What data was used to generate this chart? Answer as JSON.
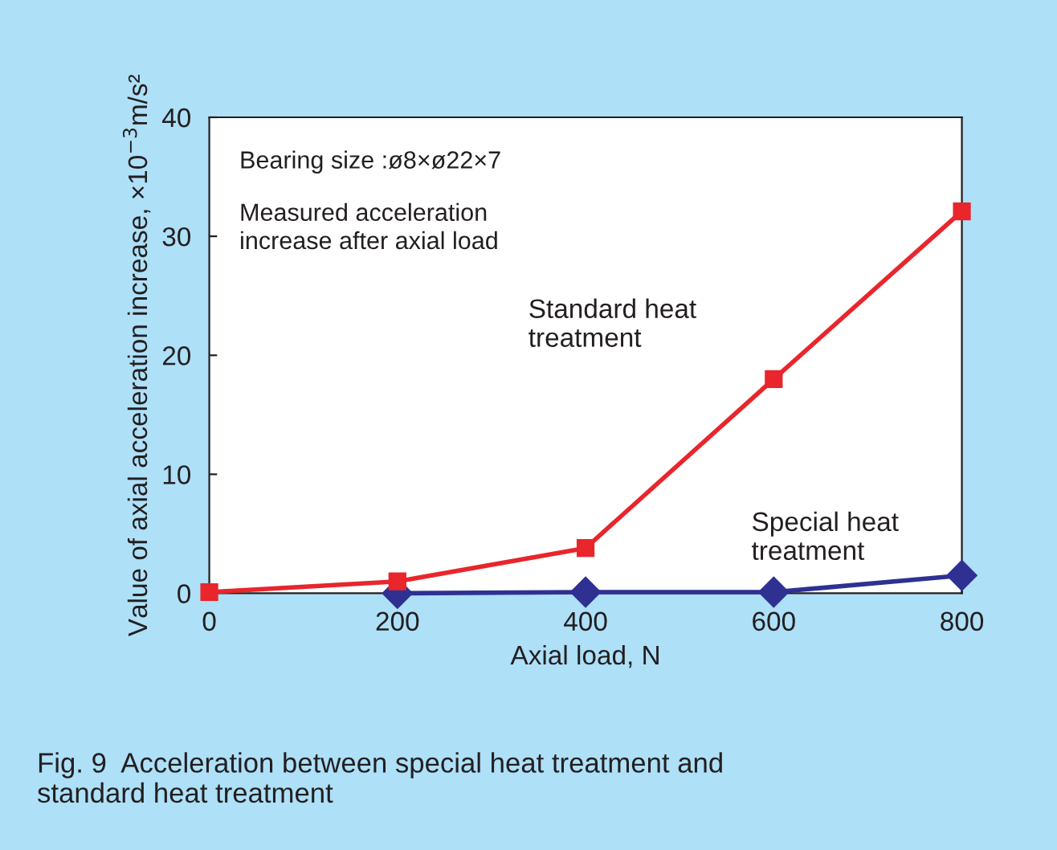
{
  "chart_data": {
    "type": "line",
    "xlabel": "Axial load, N",
    "ylabel": "Value of axial acceleration increase, ×10$^{−3}$m/s²",
    "x": [
      0,
      200,
      400,
      600,
      800
    ],
    "series": [
      {
        "name": "Standard heat treatment",
        "color": "#e8262c",
        "marker": "square",
        "values": [
          0.1,
          1.0,
          3.8,
          18,
          32.1
        ]
      },
      {
        "name": "Special heat treatment",
        "color": "#2e3192",
        "marker": "diamond",
        "values": [
          null,
          0,
          0.1,
          0.1,
          1.5
        ]
      }
    ],
    "xlim": [
      0,
      800
    ],
    "xticks": [
      0,
      200,
      400,
      600,
      800
    ],
    "ylim": [
      0,
      40
    ],
    "yticks": [
      0,
      10,
      20,
      30,
      40
    ],
    "grid": false,
    "legend": false,
    "annotations": [
      "Bearing size :ø8×ø22×7",
      "Measured acceleration\nincrease after axial load",
      "Fig. 9  Acceleration between special heat treatment and standard heat treatment"
    ]
  }
}
